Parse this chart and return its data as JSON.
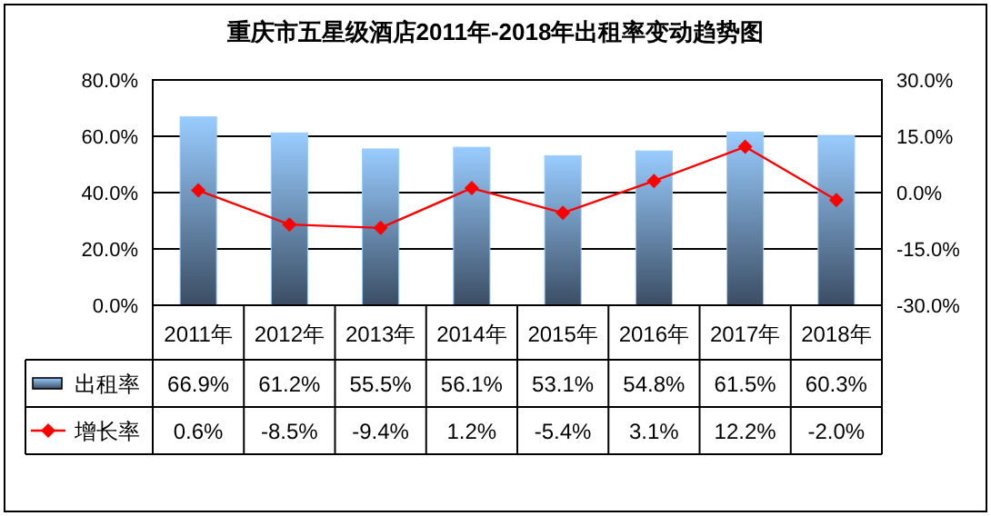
{
  "chart_data": {
    "type": "bar",
    "title": "重庆市五星级酒店2011年-2018年出租率变动趋势图",
    "categories": [
      "2011年",
      "2012年",
      "2013年",
      "2014年",
      "2015年",
      "2016年",
      "2017年",
      "2018年"
    ],
    "series": [
      {
        "name": "出租率",
        "color": "#99ccff",
        "values": [
          66.9,
          61.2,
          55.5,
          56.1,
          53.1,
          54.8,
          61.5,
          60.3
        ],
        "value_labels": [
          "66.9%",
          "61.2%",
          "55.5%",
          "56.1%",
          "53.1%",
          "54.8%",
          "61.5%",
          "60.3%"
        ]
      },
      {
        "name": "增长率",
        "type": "line",
        "axis": "y2",
        "color": "#ff0000",
        "marker": "diamond",
        "line_style": "solid",
        "values": [
          0.6,
          -8.5,
          -9.4,
          1.2,
          -5.4,
          3.1,
          12.2,
          -2.0
        ],
        "value_labels": [
          "0.6%",
          "-8.5%",
          "-9.4%",
          "1.2%",
          "-5.4%",
          "3.1%",
          "12.2%",
          "-2.0%"
        ]
      }
    ],
    "ylim": [
      0,
      80
    ],
    "yticks": [
      {
        "value": 0,
        "label": "0.0%"
      },
      {
        "value": 20,
        "label": "20.0%"
      },
      {
        "value": 40,
        "label": "40.0%"
      },
      {
        "value": 60,
        "label": "60.0%"
      },
      {
        "value": 80,
        "label": "80.0%"
      }
    ],
    "y2lim": [
      -30,
      30
    ],
    "y2ticks": [
      {
        "value": -30,
        "label": "-30.0%"
      },
      {
        "value": -15,
        "label": "-15.0%"
      },
      {
        "value": 0,
        "label": "0.0%"
      },
      {
        "value": 15,
        "label": "15.0%"
      },
      {
        "value": 30,
        "label": "30.0%"
      }
    ],
    "grid": "y",
    "legend": "bottom"
  }
}
